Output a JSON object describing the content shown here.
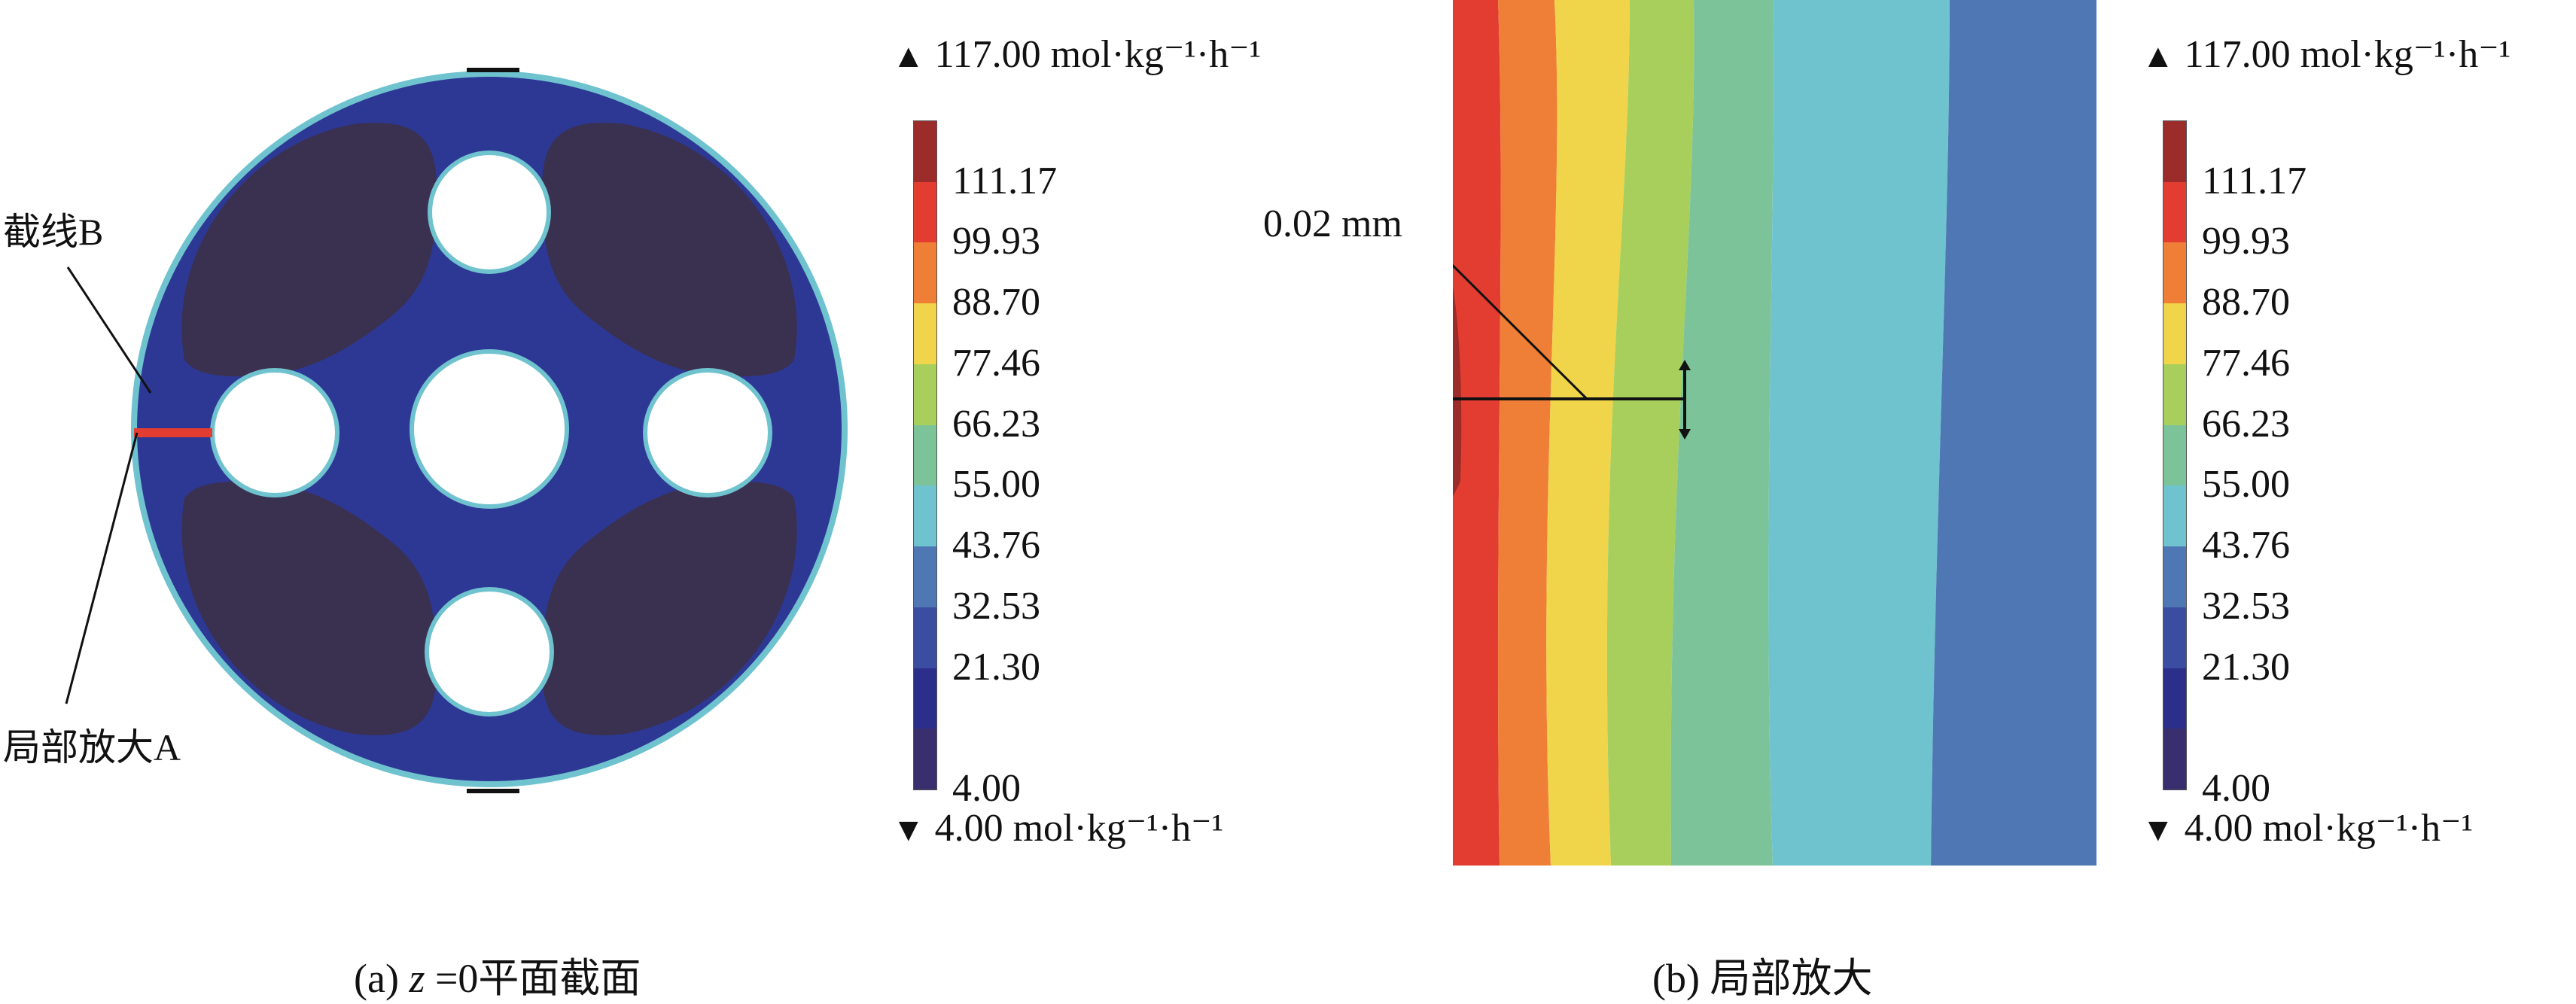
{
  "panel_a": {
    "caption_prefix": "(a) ",
    "caption_var": "z",
    "caption_rest": " =0平面截面",
    "label_line_b": "截线B",
    "label_zoom_a": "局部放大A"
  },
  "panel_b": {
    "caption": "(b) 局部放大",
    "scale_label": "0.02 mm"
  },
  "legend": {
    "max_label": "117.00 mol·kg⁻¹·h⁻¹",
    "min_label_a": "4.00 mol·kg⁻¹·h⁻¹",
    "min_label_b": "4.00  mol·kg⁻¹·h⁻¹",
    "ticks": [
      "111.17",
      "99.93",
      "88.70",
      "77.46",
      "66.23",
      "55.00",
      "43.76",
      "32.53",
      "21.30",
      "4.00"
    ],
    "colors": [
      "#9b2c2a",
      "#e33d32",
      "#ef7f36",
      "#f0d54a",
      "#a8cf5c",
      "#7dc39a",
      "#6fc3cf",
      "#4e77b3",
      "#3b4da0",
      "#2c2f8a",
      "#3a2f6e"
    ]
  },
  "colors": {
    "body": "#3a3050",
    "matrix": "#2d3894",
    "rim": "#6fc3cf",
    "highlight": "#e33d32"
  },
  "zoom_bands": [
    "#e33d32",
    "#ef7f36",
    "#f0d54a",
    "#a8cf5c",
    "#7dc39a",
    "#6fc3cf",
    "#4e77b3"
  ]
}
